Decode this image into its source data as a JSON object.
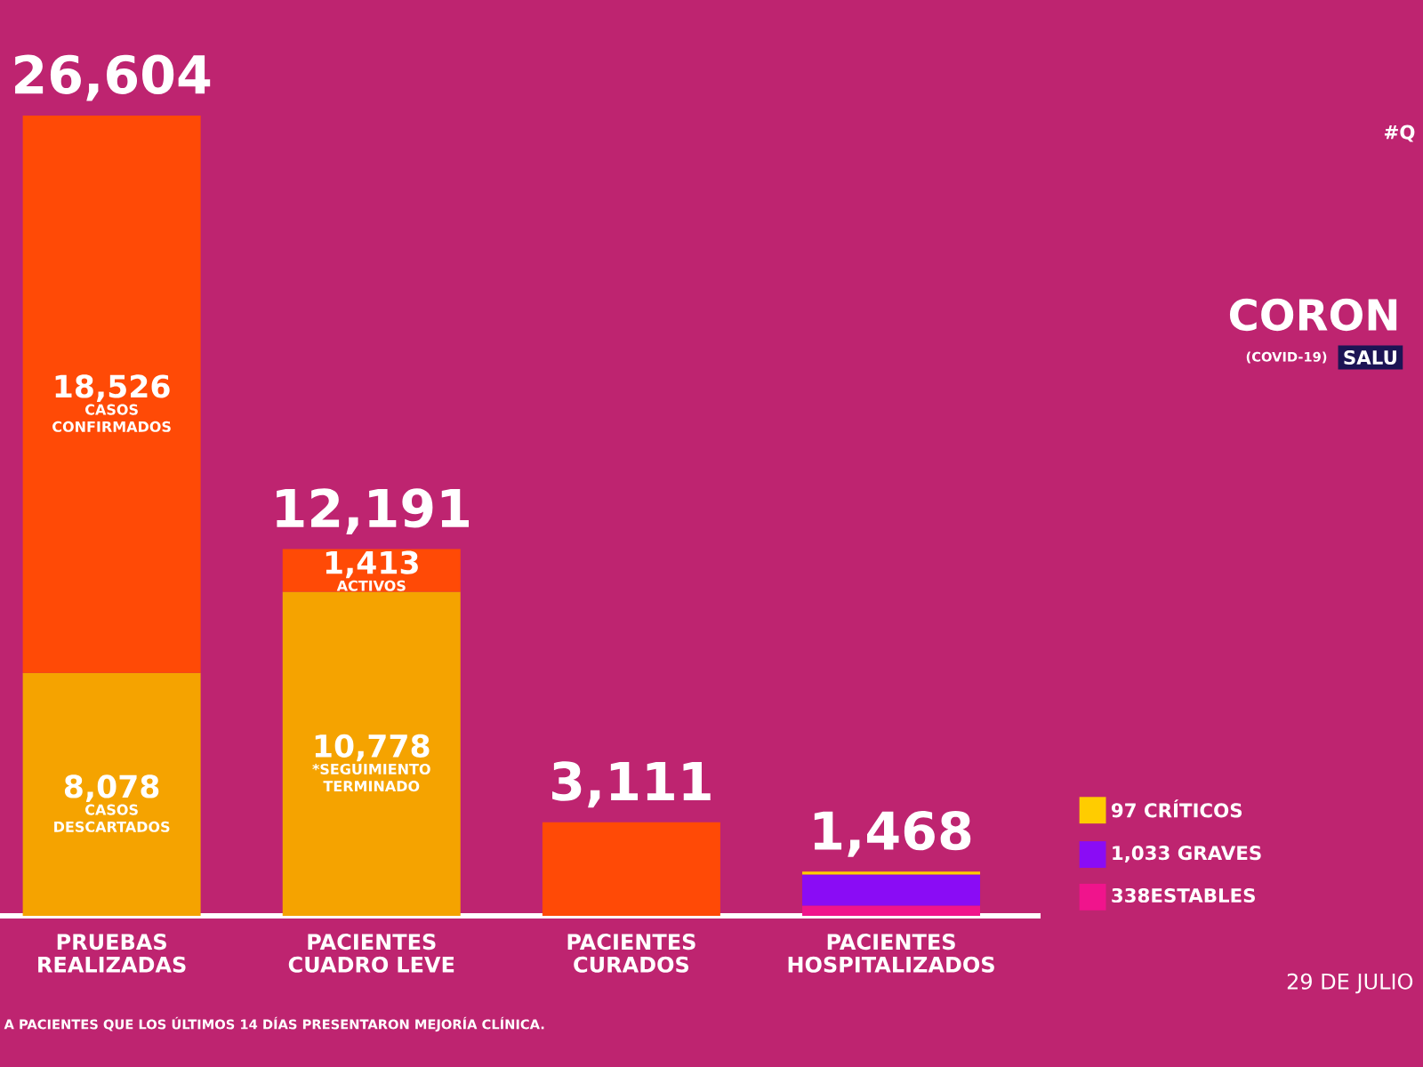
{
  "chart_data": {
    "type": "bar",
    "stacked": true,
    "categories": [
      "PRUEBAS REALIZADAS",
      "PACIENTES CUADRO LEVE",
      "PACIENTES CURADOS",
      "PACIENTES HOSPITALIZADOS"
    ],
    "series": [
      {
        "values": [
          8078,
          10778,
          3111,
          null
        ],
        "colors": [
          "#f5a300",
          "#f5a300",
          "#ff4a06",
          null
        ],
        "value_labels": [
          "8,078",
          "10,778",
          null,
          null
        ]
      },
      {
        "name": "338ESTABLES",
        "color": "#f0148c",
        "values": [
          null,
          null,
          null,
          338
        ]
      },
      {
        "name": "1,033 GRAVES",
        "color": "#8a0cf5",
        "values": [
          null,
          null,
          null,
          1033
        ]
      },
      {
        "name": "97 CRÍTICOS",
        "color": "#ffcc00",
        "values": [
          null,
          null,
          null,
          97
        ]
      },
      {
        "color": "#ff4a06",
        "values": [
          18526,
          1413,
          null,
          null
        ],
        "value_labels": [
          "18,526",
          "1,413",
          null,
          null
        ]
      }
    ],
    "totals": [
      "26,604",
      "12,191",
      "3,111",
      "1,468"
    ],
    "legend": "bottom right",
    "tick_labels": "x",
    "annotations": [
      "CASOS CONFIRMADOS",
      "CASOS DESCARTADOS",
      "ACTIVOS",
      "*SEGUIMIENTO TERMINADO",
      "CORON",
      "(COVID-19)",
      "SALU",
      "#Q",
      "29 DE JULIO",
      "A PACIENTES QUE LOS ÚLTIMOS 14 DÍAS PRESENTARON MEJORÍA CLÍNICA."
    ]
  }
}
